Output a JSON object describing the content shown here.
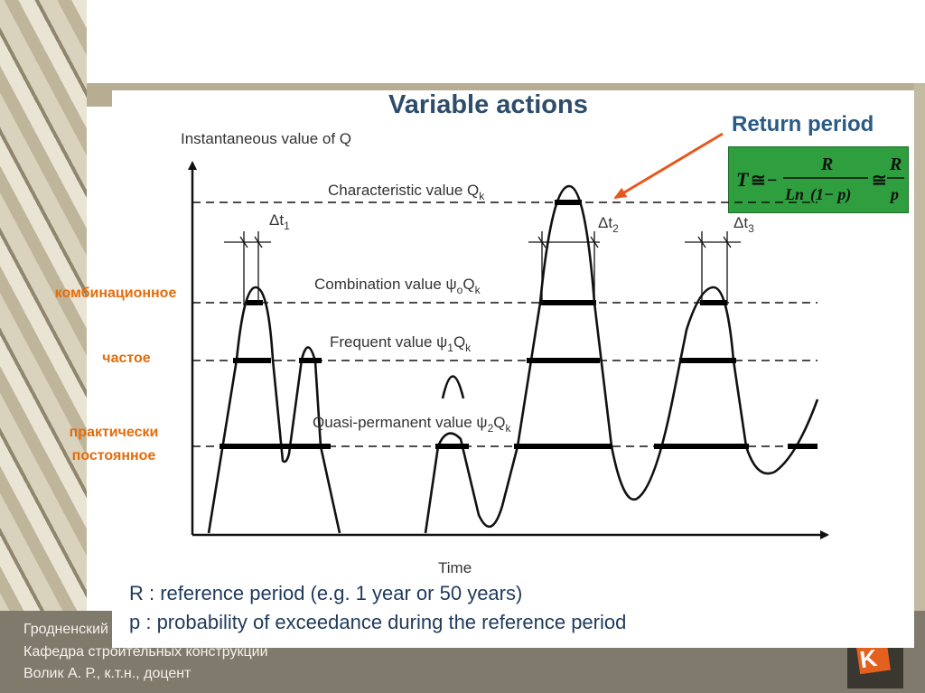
{
  "slide": {
    "title": "Variable actions",
    "y_axis_label": "Instantaneous value of Q",
    "x_axis_label": "Time",
    "return_period": "Return period",
    "formula": {
      "lhs": "T",
      "approx": "≅",
      "minus": "−",
      "num": "R",
      "den_ln": "Ln",
      "den_arg": "(1− p)",
      "num2": "R",
      "den2": "p"
    },
    "levels": {
      "characteristic": {
        "text": "Characteristic value Q",
        "sub": "k"
      },
      "combination": {
        "text": "Combination value ψ",
        "sub0": "o",
        "mid": "Q",
        "sub": "k"
      },
      "frequent": {
        "text": "Frequent value ψ",
        "sub0": "1",
        "mid": "Q",
        "sub": "k"
      },
      "quasi": {
        "text": "Quasi-permanent value ψ",
        "sub0": "2",
        "mid": "Q",
        "sub": "k"
      }
    },
    "deltas": [
      {
        "base": "Δt",
        "sub": "1"
      },
      {
        "base": "Δt",
        "sub": "2"
      },
      {
        "base": "Δt",
        "sub": "3"
      }
    ],
    "ru_labels": {
      "combination": "комбинационное",
      "frequent": "частое",
      "quasi_1": "практически",
      "quasi_2": "постоянное"
    },
    "notes": [
      "R : reference  period (e.g. 1 year or 50 years)",
      "p : probability of exceedance during the reference period"
    ]
  },
  "footer": {
    "line1": "Гродненский",
    "line2": "Кафедра строительных конструкций",
    "line3": "Волик А. Р., к.т.н., доцент"
  },
  "colors": {
    "title": "#2e4d6a",
    "accent_orange": "#e46c0a",
    "arrow": "#e8571e",
    "formula_bg": "#2e9e3e",
    "footer_bg": "#807a6c"
  }
}
